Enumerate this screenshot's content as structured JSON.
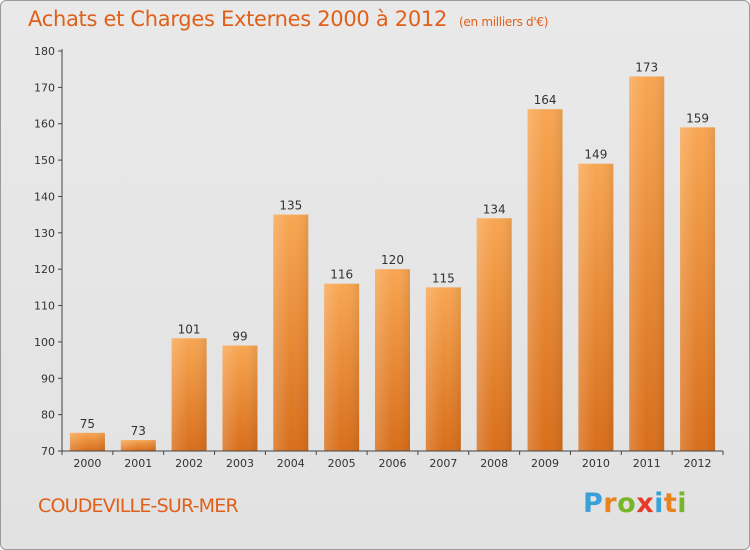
{
  "title": "Achats et Charges Externes 2000 à 2012",
  "subtitle": "(en milliers d'€)",
  "commune": "COUDEVILLE-SUR-MER",
  "brand": {
    "letters": [
      {
        "ch": "P",
        "color": "#3aa0d8"
      },
      {
        "ch": "r",
        "color": "#e8831e"
      },
      {
        "ch": "o",
        "color": "#79b52a"
      },
      {
        "ch": "x",
        "color": "#e83a2a"
      },
      {
        "ch": "i",
        "color": "#3aa0d8"
      },
      {
        "ch": "t",
        "color": "#e8831e"
      },
      {
        "ch": "i",
        "color": "#79b52a"
      }
    ]
  },
  "colors": {
    "title": "#e0601a",
    "bar_top": "#f8a652",
    "bar_bottom": "#d86e1a",
    "axis": "#444444"
  },
  "chart_data": {
    "type": "bar",
    "title": "Achats et Charges Externes 2000 à 2012",
    "subtitle": "(en milliers d'€)",
    "categories": [
      "2000",
      "2001",
      "2002",
      "2003",
      "2004",
      "2005",
      "2006",
      "2007",
      "2008",
      "2009",
      "2010",
      "2011",
      "2012"
    ],
    "values": [
      75,
      73,
      101,
      99,
      135,
      116,
      120,
      115,
      134,
      164,
      149,
      173,
      159
    ],
    "ylim": [
      70,
      180
    ],
    "yticks": [
      70,
      80,
      90,
      100,
      110,
      120,
      130,
      140,
      150,
      160,
      170,
      180
    ],
    "grid": false,
    "legend": "none"
  }
}
